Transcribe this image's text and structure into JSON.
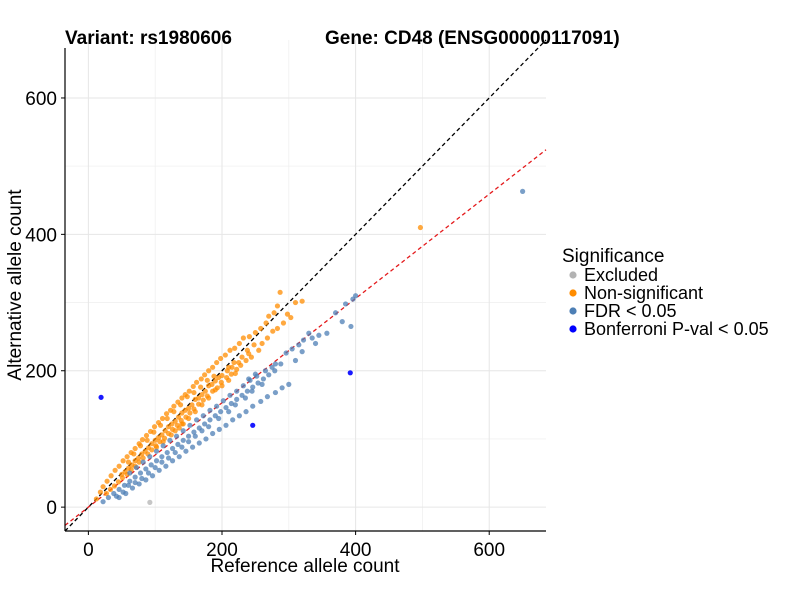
{
  "chart_data": {
    "type": "scatter",
    "title_left": "Variant: rs1980606",
    "title_right": "Gene: CD48 (ENSG00000117091)",
    "xlabel": "Reference allele count",
    "ylabel": "Alternative allele count",
    "xlim": [
      -35,
      685
    ],
    "ylim": [
      -35,
      685
    ],
    "xticks": [
      0,
      200,
      400,
      600
    ],
    "yticks": [
      0,
      200,
      400,
      600
    ],
    "x_minor": [
      100,
      300,
      500
    ],
    "y_minor": [
      100,
      300,
      500
    ],
    "grid": true,
    "legend_position": "right",
    "legend_title": "Significance",
    "reference_lines": [
      {
        "name": "identity",
        "slope": 1.0,
        "intercept": 0,
        "color": "#000000",
        "dash": "dashed"
      },
      {
        "name": "fit",
        "slope": 0.765,
        "intercept": 0,
        "color": "#e41a1c",
        "dash": "dashed"
      }
    ],
    "series": [
      {
        "name": "Excluded",
        "color": "#b3b3b3",
        "points": [
          [
            92,
            7
          ]
        ]
      },
      {
        "name": "Non-significant",
        "color": "#ff8c00",
        "points": [
          [
            497,
            410
          ],
          [
            287,
            315
          ],
          [
            283,
            295
          ],
          [
            278,
            285
          ],
          [
            270,
            280
          ],
          [
            303,
            278
          ],
          [
            292,
            270
          ],
          [
            283,
            262
          ],
          [
            266,
            270
          ],
          [
            258,
            262
          ],
          [
            250,
            256
          ],
          [
            241,
            250
          ],
          [
            232,
            248
          ],
          [
            226,
            240
          ],
          [
            219,
            233
          ],
          [
            212,
            230
          ],
          [
            205,
            223
          ],
          [
            198,
            218
          ],
          [
            192,
            212
          ],
          [
            186,
            205
          ],
          [
            180,
            200
          ],
          [
            174,
            194
          ],
          [
            169,
            188
          ],
          [
            162,
            183
          ],
          [
            157,
            177
          ],
          [
            151,
            170
          ],
          [
            145,
            165
          ],
          [
            140,
            160
          ],
          [
            134,
            154
          ],
          [
            128,
            148
          ],
          [
            123,
            142
          ],
          [
            117,
            137
          ],
          [
            111,
            130
          ],
          [
            105,
            124
          ],
          [
            99,
            118
          ],
          [
            93,
            111
          ],
          [
            87,
            105
          ],
          [
            81,
            99
          ],
          [
            76,
            93
          ],
          [
            70,
            86
          ],
          [
            64,
            80
          ],
          [
            58,
            74
          ],
          [
            52,
            68
          ],
          [
            46,
            60
          ],
          [
            40,
            54
          ],
          [
            34,
            46
          ],
          [
            28,
            38
          ],
          [
            22,
            30
          ],
          [
            18,
            22
          ],
          [
            12,
            12
          ],
          [
            260,
            240
          ],
          [
            255,
            230
          ],
          [
            244,
            220
          ],
          [
            236,
            215
          ],
          [
            228,
            208
          ],
          [
            222,
            202
          ],
          [
            214,
            195
          ],
          [
            207,
            190
          ],
          [
            199,
            183
          ],
          [
            193,
            175
          ],
          [
            186,
            170
          ],
          [
            178,
            163
          ],
          [
            172,
            157
          ],
          [
            165,
            151
          ],
          [
            158,
            144
          ],
          [
            152,
            138
          ],
          [
            146,
            132
          ],
          [
            139,
            127
          ],
          [
            133,
            120
          ],
          [
            126,
            114
          ],
          [
            120,
            108
          ],
          [
            114,
            101
          ],
          [
            107,
            96
          ],
          [
            101,
            90
          ],
          [
            95,
            84
          ],
          [
            89,
            78
          ],
          [
            82,
            72
          ],
          [
            76,
            66
          ],
          [
            70,
            60
          ],
          [
            64,
            55
          ],
          [
            58,
            48
          ],
          [
            51,
            43
          ],
          [
            45,
            37
          ],
          [
            39,
            31
          ],
          [
            33,
            26
          ],
          [
            27,
            20
          ],
          [
            210,
            205
          ],
          [
            200,
            193
          ],
          [
            190,
            185
          ],
          [
            180,
            178
          ],
          [
            170,
            165
          ],
          [
            160,
            158
          ],
          [
            150,
            145
          ],
          [
            140,
            138
          ],
          [
            130,
            126
          ],
          [
            120,
            118
          ],
          [
            110,
            106
          ],
          [
            100,
            98
          ],
          [
            90,
            87
          ],
          [
            80,
            78
          ],
          [
            70,
            68
          ],
          [
            60,
            57
          ],
          [
            50,
            48
          ],
          [
            240,
            225
          ],
          [
            230,
            220
          ],
          [
            225,
            212
          ],
          [
            215,
            205
          ],
          [
            195,
            190
          ],
          [
            185,
            180
          ],
          [
            175,
            170
          ],
          [
            165,
            160
          ],
          [
            155,
            150
          ],
          [
            145,
            142
          ],
          [
            135,
            132
          ],
          [
            125,
            122
          ],
          [
            115,
            112
          ],
          [
            105,
            102
          ],
          [
            95,
            93
          ],
          [
            85,
            82
          ],
          [
            75,
            72
          ],
          [
            65,
            62
          ],
          [
            55,
            52
          ],
          [
            310,
            300
          ],
          [
            320,
            302
          ],
          [
            298,
            283
          ],
          [
            276,
            258
          ],
          [
            268,
            248
          ],
          [
            248,
            238
          ],
          [
            238,
            230
          ],
          [
            218,
            212
          ],
          [
            208,
            200
          ],
          [
            188,
            192
          ],
          [
            178,
            186
          ],
          [
            168,
            176
          ],
          [
            158,
            168
          ],
          [
            148,
            162
          ],
          [
            138,
            150
          ],
          [
            128,
            140
          ],
          [
            118,
            130
          ],
          [
            108,
            120
          ],
          [
            98,
            110
          ],
          [
            88,
            98
          ],
          [
            78,
            90
          ],
          [
            68,
            78
          ],
          [
            60,
            66
          ],
          [
            160,
            140
          ],
          [
            170,
            150
          ],
          [
            150,
            130
          ],
          [
            140,
            122
          ],
          [
            130,
            112
          ],
          [
            180,
            160
          ],
          [
            190,
            172
          ],
          [
            200,
            178
          ],
          [
            210,
            186
          ],
          [
            220,
            196
          ],
          [
            142,
            122
          ],
          [
            136,
            116
          ],
          [
            124,
            106
          ],
          [
            112,
            96
          ],
          [
            102,
            88
          ]
        ]
      },
      {
        "name": "FDR < 0.05",
        "color": "#4d7fb5",
        "points": [
          [
            650,
            463
          ],
          [
            400,
            310
          ],
          [
            396,
            305
          ],
          [
            385,
            298
          ],
          [
            393,
            265
          ],
          [
            380,
            272
          ],
          [
            370,
            285
          ],
          [
            357,
            255
          ],
          [
            340,
            240
          ],
          [
            330,
            255
          ],
          [
            322,
            245
          ],
          [
            315,
            238
          ],
          [
            305,
            232
          ],
          [
            296,
            226
          ],
          [
            288,
            210
          ],
          [
            279,
            200
          ],
          [
            270,
            194
          ],
          [
            262,
            188
          ],
          [
            254,
            182
          ],
          [
            246,
            176
          ],
          [
            238,
            170
          ],
          [
            230,
            164
          ],
          [
            222,
            158
          ],
          [
            214,
            152
          ],
          [
            206,
            146
          ],
          [
            198,
            140
          ],
          [
            190,
            134
          ],
          [
            182,
            128
          ],
          [
            174,
            122
          ],
          [
            166,
            116
          ],
          [
            158,
            110
          ],
          [
            150,
            104
          ],
          [
            142,
            98
          ],
          [
            134,
            92
          ],
          [
            126,
            86
          ],
          [
            118,
            80
          ],
          [
            110,
            74
          ],
          [
            102,
            68
          ],
          [
            94,
            62
          ],
          [
            86,
            56
          ],
          [
            78,
            50
          ],
          [
            70,
            44
          ],
          [
            62,
            38
          ],
          [
            54,
            32
          ],
          [
            46,
            26
          ],
          [
            38,
            20
          ],
          [
            30,
            14
          ],
          [
            22,
            8
          ],
          [
            300,
            180
          ],
          [
            290,
            175
          ],
          [
            280,
            168
          ],
          [
            268,
            162
          ],
          [
            258,
            155
          ],
          [
            246,
            148
          ],
          [
            236,
            140
          ],
          [
            226,
            134
          ],
          [
            216,
            128
          ],
          [
            206,
            120
          ],
          [
            196,
            114
          ],
          [
            186,
            108
          ],
          [
            176,
            100
          ],
          [
            166,
            94
          ],
          [
            156,
            88
          ],
          [
            146,
            82
          ],
          [
            136,
            74
          ],
          [
            126,
            68
          ],
          [
            116,
            60
          ],
          [
            106,
            54
          ],
          [
            96,
            46
          ],
          [
            86,
            40
          ],
          [
            76,
            34
          ],
          [
            66,
            28
          ],
          [
            56,
            20
          ],
          [
            46,
            14
          ],
          [
            252,
            192
          ],
          [
            242,
            186
          ],
          [
            232,
            178
          ],
          [
            222,
            170
          ],
          [
            212,
            164
          ],
          [
            202,
            156
          ],
          [
            192,
            148
          ],
          [
            182,
            142
          ],
          [
            172,
            134
          ],
          [
            162,
            128
          ],
          [
            152,
            120
          ],
          [
            142,
            112
          ],
          [
            132,
            104
          ],
          [
            122,
            98
          ],
          [
            112,
            90
          ],
          [
            102,
            82
          ],
          [
            92,
            74
          ],
          [
            82,
            66
          ],
          [
            72,
            58
          ],
          [
            62,
            50
          ],
          [
            280,
            210
          ],
          [
            275,
            205
          ],
          [
            265,
            200
          ],
          [
            250,
            195
          ],
          [
            240,
            188
          ],
          [
            310,
            215
          ],
          [
            320,
            228
          ],
          [
            335,
            248
          ],
          [
            345,
            252
          ],
          [
            260,
            180
          ],
          [
            245,
            170
          ],
          [
            235,
            160
          ],
          [
            220,
            150
          ],
          [
            210,
            140
          ],
          [
            195,
            130
          ],
          [
            180,
            118
          ],
          [
            170,
            112
          ],
          [
            160,
            104
          ],
          [
            150,
            96
          ],
          [
            140,
            88
          ],
          [
            130,
            80
          ],
          [
            120,
            72
          ],
          [
            110,
            66
          ],
          [
            100,
            58
          ],
          [
            90,
            50
          ],
          [
            80,
            42
          ],
          [
            70,
            36
          ],
          [
            60,
            32
          ],
          [
            52,
            22
          ],
          [
            42,
            16
          ]
        ]
      },
      {
        "name": "Bonferroni P-val < 0.05",
        "color": "#0000ff",
        "points": [
          [
            19,
            161
          ],
          [
            392,
            197
          ],
          [
            246,
            120
          ]
        ]
      }
    ]
  }
}
